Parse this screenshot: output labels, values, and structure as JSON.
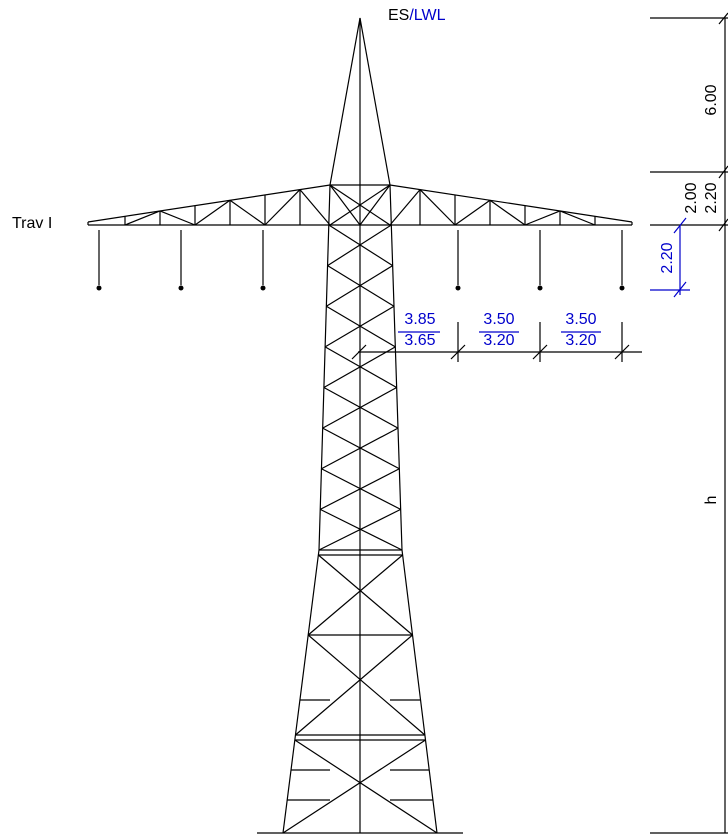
{
  "header": {
    "top_label": "ES",
    "top_label_suffix": "/LWL",
    "crossarm_label": "Trav I"
  },
  "dimensions": {
    "vertical": {
      "top": "6.00",
      "upper": "2.00",
      "lower": "2.20",
      "height": "h",
      "insulator": "2.20"
    },
    "horizontal": [
      {
        "upper": "3.85",
        "lower": "3.65"
      },
      {
        "upper": "3.50",
        "lower": "3.20"
      },
      {
        "upper": "3.50",
        "lower": "3.20"
      }
    ]
  }
}
